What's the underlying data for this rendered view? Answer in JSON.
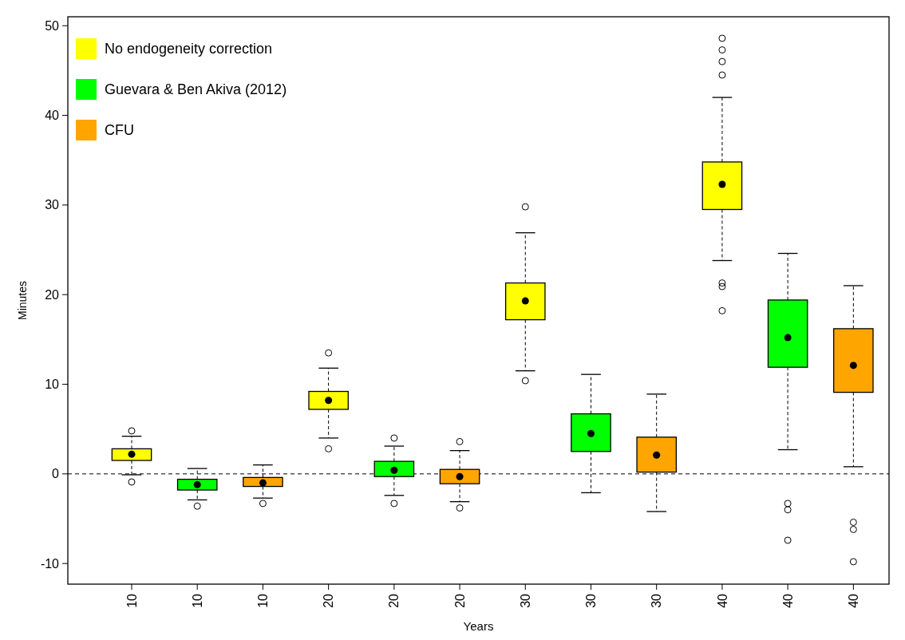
{
  "chart_data": {
    "type": "box",
    "xlabel": "Years",
    "ylabel": "Minutes",
    "categories": [
      "10",
      "10",
      "10",
      "20",
      "20",
      "20",
      "30",
      "30",
      "30",
      "40",
      "40",
      "40"
    ],
    "ylim": [
      -12.3,
      51
    ],
    "yticks": [
      -10,
      0,
      10,
      20,
      30,
      40,
      50
    ],
    "legend": "top left",
    "grid": false,
    "ref_lines": [
      {
        "axis": "y",
        "value": 0,
        "line_style": "dashed",
        "color": "#000000"
      }
    ],
    "series": [
      {
        "name": "No endogeneity correction",
        "color": "#ffff00",
        "boxes": [
          {
            "low": -0.1,
            "q1": 1.5,
            "median": 2.2,
            "q3": 2.8,
            "high": 4.2,
            "outliers": [
              4.8,
              -0.9
            ]
          },
          null,
          null,
          {
            "low": 4.0,
            "q1": 7.2,
            "median": 8.2,
            "q3": 9.2,
            "high": 11.8,
            "outliers": [
              13.5,
              2.8
            ]
          },
          null,
          null,
          {
            "low": 11.5,
            "q1": 17.2,
            "median": 19.3,
            "q3": 21.3,
            "high": 26.9,
            "outliers": [
              29.8,
              10.4
            ]
          },
          null,
          null,
          {
            "low": 23.8,
            "q1": 29.5,
            "median": 32.3,
            "q3": 34.8,
            "high": 42.0,
            "outliers": [
              44.5,
              46.0,
              47.3,
              48.6,
              21.3,
              20.9,
              18.2
            ]
          },
          null,
          null
        ]
      },
      {
        "name": "Guevara & Ben Akiva (2012)",
        "color": "#00ff00",
        "boxes": [
          null,
          {
            "low": -2.9,
            "q1": -1.8,
            "median": -1.2,
            "q3": -0.6,
            "high": 0.6,
            "outliers": [
              -3.6
            ]
          },
          null,
          null,
          {
            "low": -2.4,
            "q1": -0.3,
            "median": 0.4,
            "q3": 1.4,
            "high": 3.1,
            "outliers": [
              4.0,
              -3.3
            ]
          },
          null,
          null,
          {
            "low": -2.1,
            "q1": 2.5,
            "median": 4.5,
            "q3": 6.7,
            "high": 11.1
          },
          null,
          null,
          {
            "low": 2.7,
            "q1": 11.9,
            "median": 15.2,
            "q3": 19.4,
            "high": 24.6,
            "outliers": [
              -3.3,
              -4.0,
              -7.4
            ]
          },
          null
        ]
      },
      {
        "name": "CFU",
        "color": "#ffa500",
        "boxes": [
          null,
          null,
          {
            "low": -2.7,
            "q1": -1.4,
            "median": -1.0,
            "q3": -0.4,
            "high": 1.0,
            "outliers": [
              -3.3
            ]
          },
          null,
          null,
          {
            "low": -3.1,
            "q1": -1.1,
            "median": -0.3,
            "q3": 0.5,
            "high": 2.6,
            "outliers": [
              3.6,
              -3.8
            ]
          },
          null,
          null,
          {
            "low": -4.2,
            "q1": 0.2,
            "median": 2.1,
            "q3": 4.1,
            "high": 8.9
          },
          null,
          null,
          {
            "low": 0.8,
            "q1": 9.1,
            "median": 12.1,
            "q3": 16.2,
            "high": 21.0,
            "outliers": [
              -5.4,
              -6.2,
              -9.8
            ]
          }
        ]
      }
    ]
  }
}
